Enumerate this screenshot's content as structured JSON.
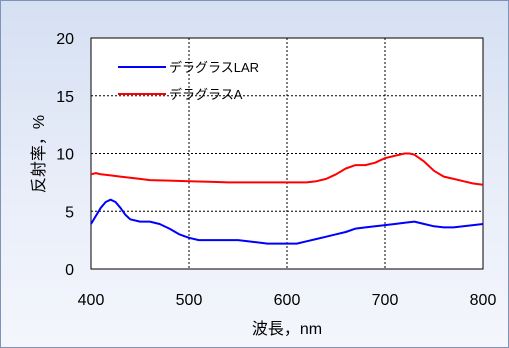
{
  "chart_data": {
    "type": "line",
    "xlabel": "波長，nm",
    "ylabel": "反射率，%",
    "xlim": [
      400,
      800
    ],
    "ylim": [
      0,
      20
    ],
    "xticks": [
      400,
      500,
      600,
      700,
      800
    ],
    "yticks": [
      0,
      5,
      10,
      15,
      20
    ],
    "grid": true,
    "legend_position": "top-left",
    "series": [
      {
        "name": "デラグラスLAR",
        "color": "#0000ff",
        "x": [
          400,
          405,
          410,
          415,
          420,
          425,
          430,
          435,
          440,
          450,
          460,
          470,
          480,
          490,
          500,
          510,
          520,
          530,
          540,
          550,
          560,
          570,
          580,
          590,
          600,
          610,
          620,
          630,
          640,
          650,
          660,
          670,
          680,
          690,
          700,
          710,
          720,
          730,
          740,
          750,
          760,
          770,
          780,
          790,
          800
        ],
        "y": [
          3.9,
          4.6,
          5.3,
          5.8,
          6.0,
          5.8,
          5.3,
          4.7,
          4.3,
          4.1,
          4.1,
          3.9,
          3.5,
          3.0,
          2.7,
          2.5,
          2.5,
          2.5,
          2.5,
          2.5,
          2.4,
          2.3,
          2.2,
          2.2,
          2.2,
          2.2,
          2.4,
          2.6,
          2.8,
          3.0,
          3.2,
          3.5,
          3.6,
          3.7,
          3.8,
          3.9,
          4.0,
          4.1,
          3.9,
          3.7,
          3.6,
          3.6,
          3.7,
          3.8,
          3.9
        ]
      },
      {
        "name": "デラグラスA",
        "color": "#ff0000",
        "x": [
          400,
          405,
          410,
          420,
          430,
          440,
          450,
          460,
          480,
          500,
          520,
          540,
          560,
          580,
          600,
          610,
          620,
          630,
          640,
          650,
          660,
          670,
          680,
          690,
          700,
          710,
          720,
          725,
          730,
          740,
          750,
          760,
          770,
          780,
          790,
          800
        ],
        "y": [
          8.2,
          8.3,
          8.2,
          8.1,
          8.0,
          7.9,
          7.8,
          7.7,
          7.65,
          7.6,
          7.55,
          7.5,
          7.5,
          7.5,
          7.5,
          7.5,
          7.5,
          7.6,
          7.8,
          8.2,
          8.7,
          9.0,
          9.0,
          9.2,
          9.6,
          9.8,
          10.0,
          10.0,
          9.9,
          9.3,
          8.5,
          8.0,
          7.8,
          7.6,
          7.4,
          7.3
        ]
      }
    ]
  }
}
